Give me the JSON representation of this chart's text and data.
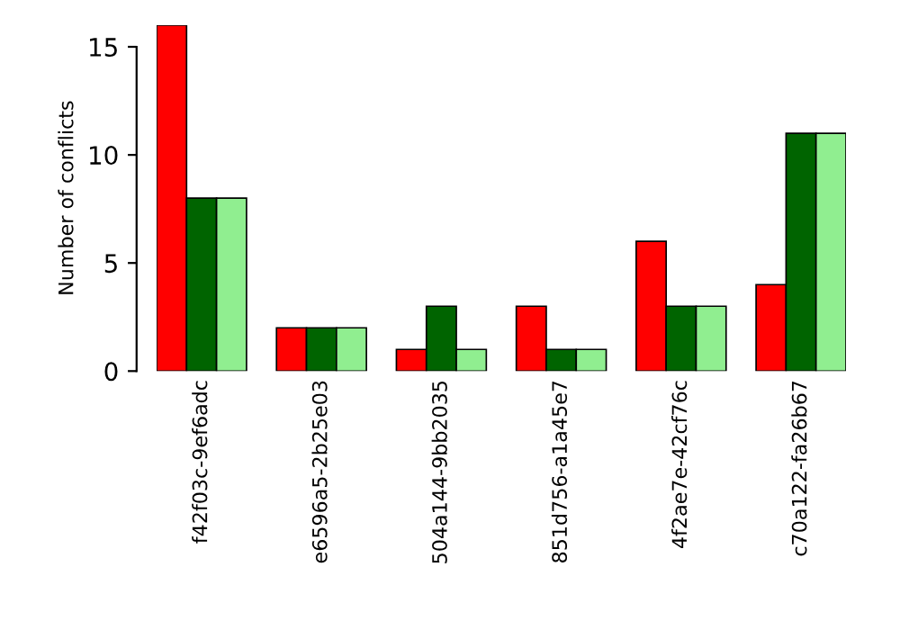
{
  "chart_data": {
    "type": "bar",
    "ylabel": "Number of conflicts",
    "categories": [
      "f42f03c-9ef6adc",
      "e6596a5-2b25e03",
      "504a144-9bb2035",
      "851d756-a1a45e7",
      "4f2ae7e-42cf76c",
      "c70a122-fa26b67"
    ],
    "series": [
      {
        "color": "#ff0000",
        "values": [
          16,
          2,
          1,
          3,
          6,
          4
        ]
      },
      {
        "color": "#006400",
        "values": [
          8,
          2,
          3,
          1,
          3,
          11
        ]
      },
      {
        "color": "#90ee90",
        "values": [
          8,
          2,
          1,
          1,
          3,
          11
        ]
      }
    ],
    "ylim": [
      0,
      16
    ],
    "yticks": [
      0,
      5,
      10,
      15
    ],
    "grid": false
  }
}
